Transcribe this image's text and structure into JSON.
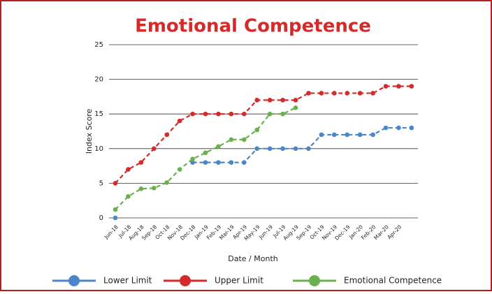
{
  "chart_data": {
    "type": "line",
    "title": "Emotional Competence",
    "x_label": "Date / Month",
    "y_label": "Index Score",
    "categories": [
      "Jun-18",
      "Jul-18",
      "Aug-18",
      "Sep-18",
      "Oct-18",
      "Nov-18",
      "Dec-18",
      "Jan-19",
      "Feb-19",
      "Mar-19",
      "Apr-19",
      "May-19",
      "Jun-19",
      "Jul-19",
      "Aug-19",
      "Sep-19",
      "Oct-19",
      "Nov-19",
      "Dec-19",
      "Jan-20",
      "Feb-20",
      "Mar-20",
      "Apr-20",
      null
    ],
    "series": [
      {
        "name": "Lower Limit",
        "color": "#4a86c8",
        "values": [
          0,
          null,
          null,
          null,
          null,
          null,
          8,
          8,
          8,
          8,
          8,
          10,
          10,
          10,
          10,
          10,
          12,
          12,
          12,
          12,
          12,
          13,
          13,
          13
        ]
      },
      {
        "name": "Upper Limit",
        "color": "#d42a2a",
        "values": [
          5,
          7,
          8,
          10,
          12,
          14,
          15,
          15,
          15,
          15,
          15,
          17,
          17,
          17,
          17,
          18,
          18,
          18,
          18,
          18,
          18,
          19,
          19,
          19
        ]
      },
      {
        "name": "Emotional Competence",
        "color": "#6ab04c",
        "values": [
          1.2,
          3.1,
          4.2,
          4.3,
          5.1,
          7,
          8.5,
          9.4,
          10.3,
          11.3,
          11.3,
          12.7,
          15,
          15,
          15.9,
          null,
          null,
          null,
          null,
          null,
          null,
          null,
          null,
          null
        ]
      }
    ],
    "ylim": [
      0,
      25
    ],
    "yticks": [
      0,
      5,
      10,
      15,
      20,
      25
    ],
    "grid": true
  }
}
